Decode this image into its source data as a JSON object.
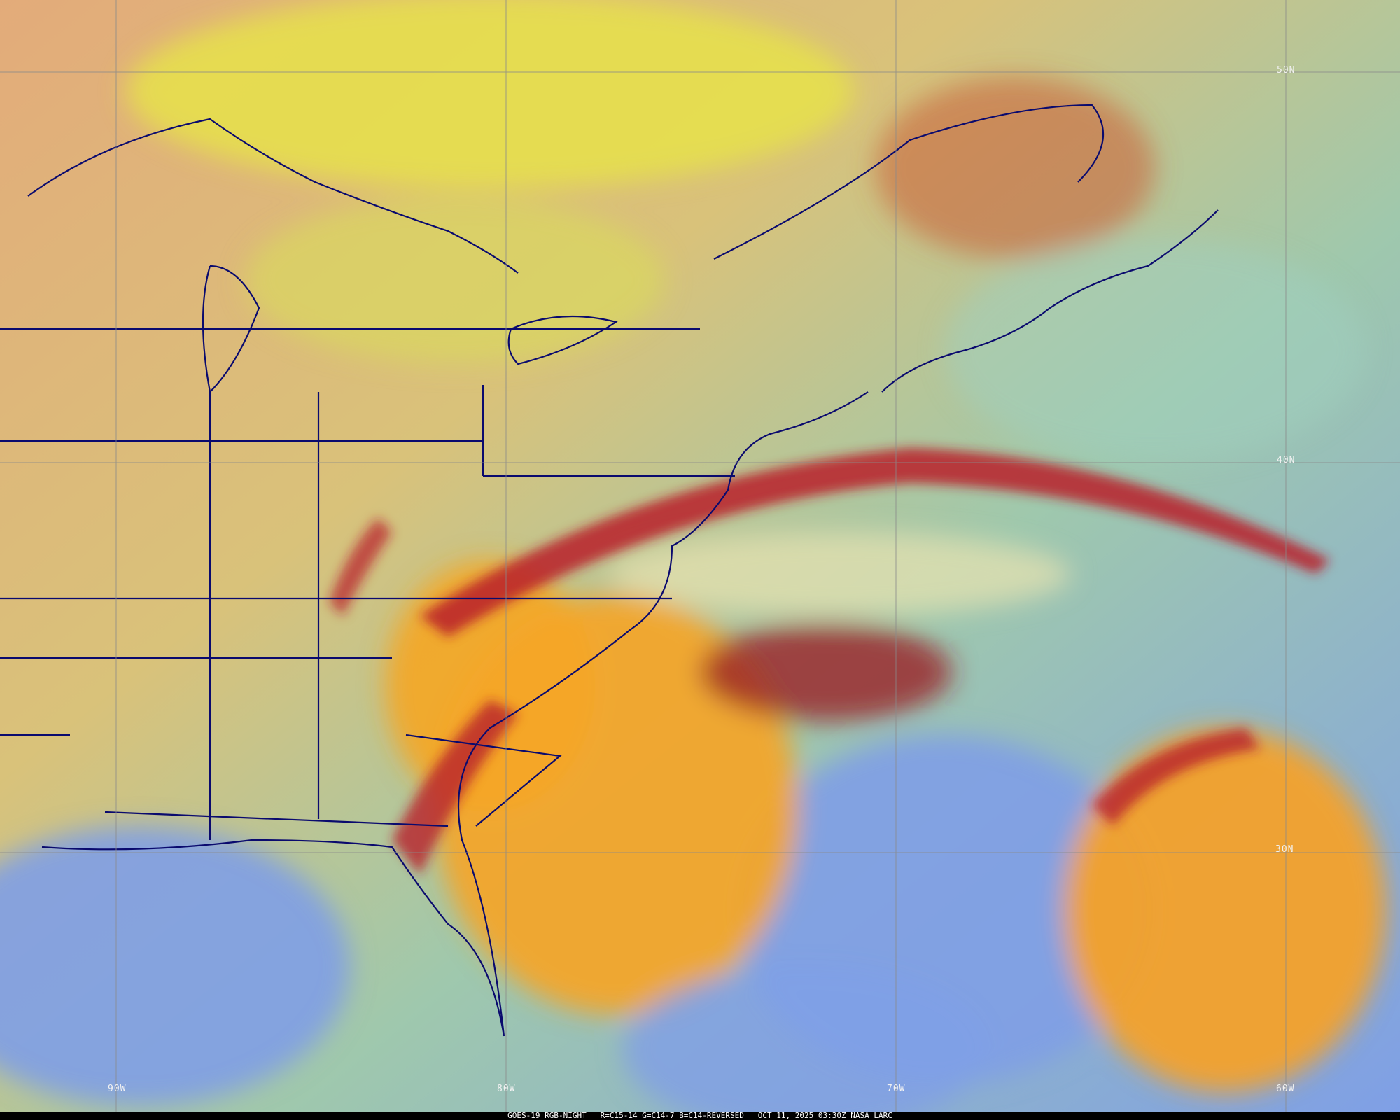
{
  "caption": {
    "satellite": "GOES-19",
    "product": "RGB-NIGHT",
    "recipe": "R=C15-14 G=C14-7 B=C14-REVERSED",
    "datetime": "OCT 11, 2025 03:30Z",
    "credit": "NASA LARC"
  },
  "grid": {
    "latitudes": [
      "50N",
      "40N",
      "30N"
    ],
    "longitudes": [
      "90W",
      "80W",
      "70W",
      "60W"
    ]
  },
  "colors": {
    "land_clear": "#e0b27a",
    "ocean_clear": "#8fc6b0",
    "ocean_south": "#7fa0e8",
    "high_cloud": "#f2d94a",
    "cold_cloud": "#f5a623",
    "cirrus": "#b8202a",
    "borders": "#0a0a6e",
    "gridlines": "#8a8a8a"
  }
}
